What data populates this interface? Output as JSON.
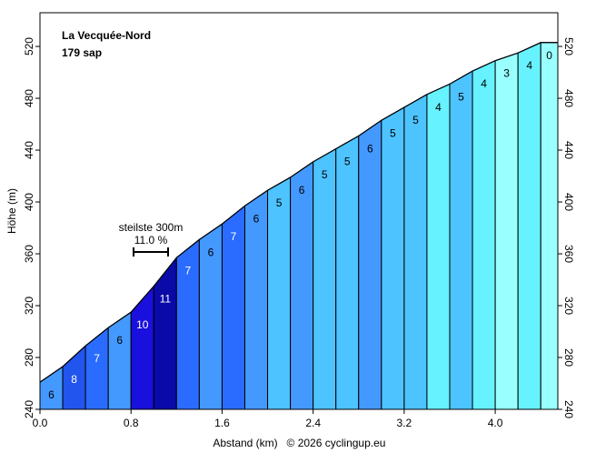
{
  "chart_data": {
    "type": "profile",
    "title": "La Vecquée-Nord",
    "subtitle": "179 sap",
    "x_label": "Abstand (km)",
    "y_label": "Höhe (m)",
    "credit": "© 2026 cyclingup.eu",
    "x": [
      0,
      0.2,
      0.4,
      0.6,
      0.8,
      1.0,
      1.2,
      1.4,
      1.6,
      1.8,
      2.0,
      2.2,
      2.4,
      2.6,
      2.8,
      3.0,
      3.2,
      3.4,
      3.6,
      3.8,
      4.0,
      4.2,
      4.4,
      4.55
    ],
    "elevation": [
      261,
      273,
      289,
      303,
      315,
      335,
      357,
      371,
      383,
      397,
      409,
      419,
      431,
      441,
      451,
      463,
      473,
      483,
      491,
      501,
      509,
      515,
      523,
      523
    ],
    "grades": [
      6,
      8,
      7,
      6,
      10,
      11,
      7,
      6,
      7,
      6,
      5,
      6,
      5,
      5,
      6,
      5,
      5,
      4,
      5,
      4,
      3,
      4,
      0
    ],
    "colors": [
      "#4499ff",
      "#2255ee",
      "#2a6cff",
      "#4499ff",
      "#1a10dd",
      "#0a0aa8",
      "#2a6cff",
      "#4499ff",
      "#2a6cff",
      "#4499ff",
      "#4dc3ff",
      "#4499ff",
      "#4dc3ff",
      "#4dc3ff",
      "#4499ff",
      "#4dc3ff",
      "#4dc3ff",
      "#66f2ff",
      "#4dc3ff",
      "#66f2ff",
      "#99ffff",
      "#66f2ff",
      "#99ffff"
    ],
    "steepest": {
      "label": "steilste 300m",
      "value": 11.0,
      "value_label": "11.0 %"
    },
    "xlim": [
      0,
      4.55
    ],
    "ylim": [
      240,
      546
    ],
    "xticks": [
      {
        "value": 0,
        "label": "0.0"
      },
      0.8,
      1.6,
      2.4,
      3.2,
      {
        "value": 4,
        "label": "4.0"
      }
    ],
    "yticks": [
      240,
      280,
      320,
      360,
      400,
      440,
      480,
      520
    ]
  }
}
